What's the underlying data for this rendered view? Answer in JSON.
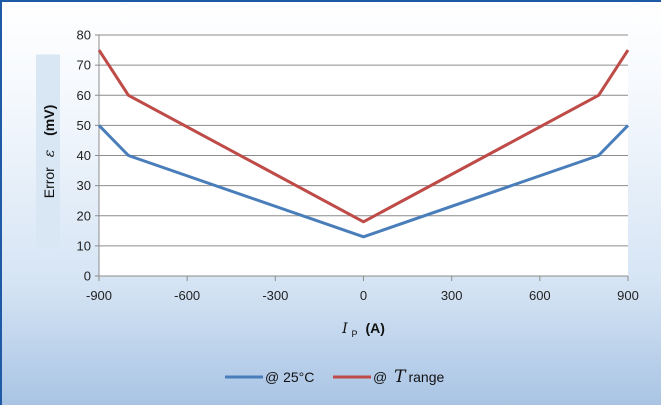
{
  "chart_data": {
    "type": "line",
    "title": "",
    "xlabel": {
      "symbol": "I",
      "subscript": "P",
      "unit": "(A)"
    },
    "ylabel": {
      "prefix": "Error",
      "symbol": "ε",
      "unit": "(mV)"
    },
    "xlim": [
      -900,
      900
    ],
    "ylim": [
      0,
      80
    ],
    "xticks": [
      -900,
      -600,
      -300,
      0,
      300,
      600,
      900
    ],
    "yticks": [
      0,
      10,
      20,
      30,
      40,
      50,
      60,
      70,
      80
    ],
    "grid": true,
    "legend_position": "bottom",
    "series": [
      {
        "name": "@ 25°C",
        "name_parts": {
          "before": "@ 25°C",
          "symbol": "",
          "after": ""
        },
        "color": "#4a7ebb",
        "x": [
          -900,
          -800,
          0,
          800,
          900
        ],
        "y": [
          50,
          40,
          13,
          40,
          50
        ]
      },
      {
        "name": "@ T range",
        "name_parts": {
          "before": "@ ",
          "symbol": "T",
          "after": " range"
        },
        "color": "#be4b48",
        "x": [
          -900,
          -800,
          0,
          800,
          900
        ],
        "y": [
          75,
          60,
          18,
          60,
          75
        ]
      }
    ]
  }
}
